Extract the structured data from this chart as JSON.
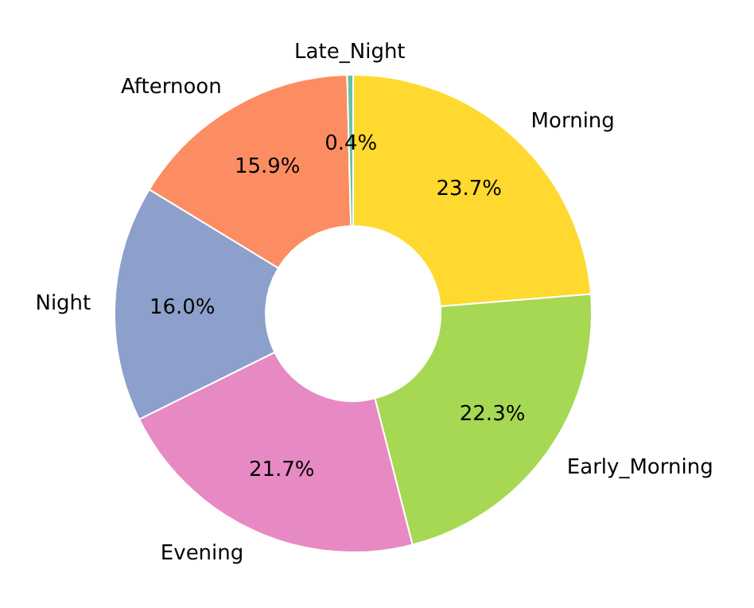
{
  "chart_data": {
    "type": "donut",
    "categories": [
      "Morning",
      "Early_Morning",
      "Evening",
      "Night",
      "Afternoon",
      "Late_Night"
    ],
    "values": [
      23.7,
      22.3,
      21.7,
      16.0,
      15.9,
      0.4
    ],
    "value_labels": [
      "23.7%",
      "22.3%",
      "21.7%",
      "16.0%",
      "15.9%",
      "0.4%"
    ],
    "colors": [
      "#ffd92f",
      "#a6d854",
      "#e78ac3",
      "#8da0cb",
      "#fc8d62",
      "#66c2a5"
    ]
  }
}
